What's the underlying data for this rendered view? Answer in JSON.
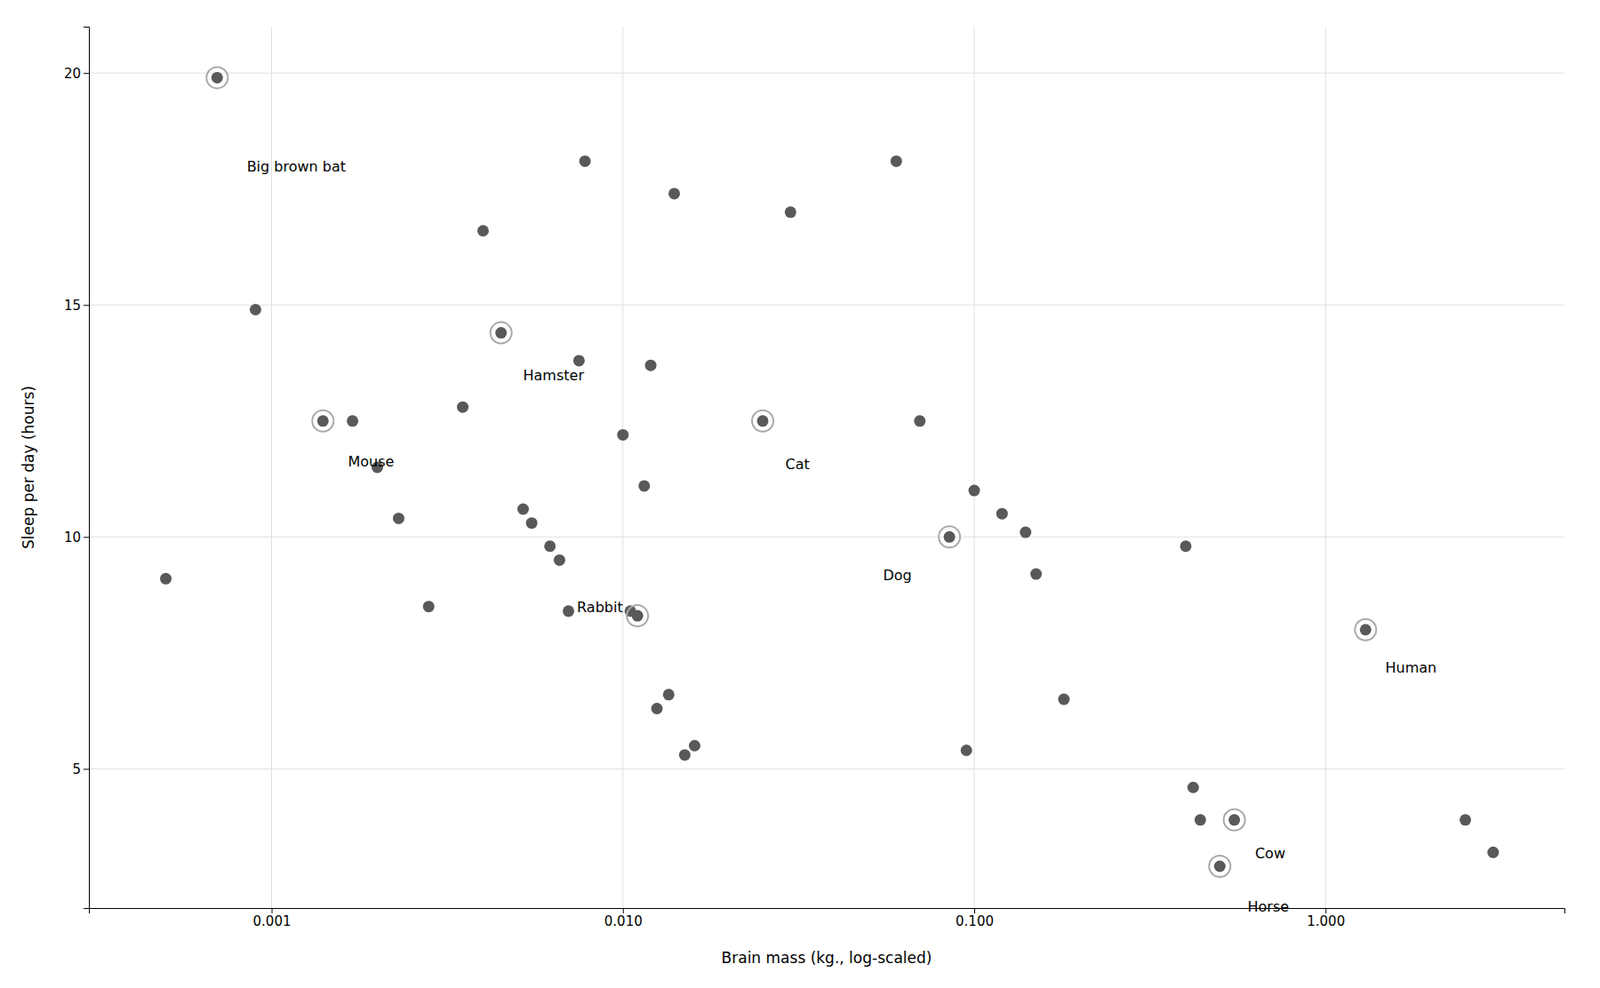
{
  "chart_data": {
    "type": "scatter",
    "xlabel": "Brain mass (kg., log-scaled)",
    "ylabel": "Sleep per day (hours)",
    "log": "x",
    "grid": true,
    "color": "#595959",
    "xlim": [
      0.0003019951720402016,
      4.786300923226383
    ],
    "ylim": [
      2.0,
      21.0
    ],
    "xticks": [
      0.001,
      {
        "value": 0.01,
        "label": "0.010"
      },
      {
        "value": 0.1,
        "label": "0.100"
      },
      {
        "value": 1.0,
        "label": "1.000"
      }
    ],
    "yticks": [
      5,
      10,
      15,
      20
    ],
    "x": [
      0.0005,
      0.0007,
      0.0009,
      0.0014,
      0.0017,
      0.002,
      0.0023,
      0.0028,
      0.0035,
      0.004,
      0.0045,
      0.0052,
      0.0055,
      0.0062,
      0.0066,
      0.007,
      0.0075,
      0.0078,
      0.01,
      0.0105,
      0.011,
      0.0115,
      0.012,
      0.0125,
      0.0135,
      0.014,
      0.015,
      0.016,
      0.025,
      0.03,
      0.06,
      0.07,
      0.085,
      0.095,
      0.1,
      0.12,
      0.14,
      0.15,
      0.18,
      0.4,
      0.42,
      0.44,
      0.5,
      0.55,
      1.3,
      2.5,
      3.0
    ],
    "values": [
      9.1,
      19.9,
      14.9,
      12.5,
      12.5,
      11.5,
      10.4,
      8.5,
      12.8,
      16.6,
      14.4,
      10.6,
      10.3,
      9.8,
      9.5,
      8.4,
      13.8,
      18.1,
      12.2,
      8.4,
      8.3,
      11.1,
      13.7,
      6.3,
      6.6,
      17.4,
      5.3,
      5.5,
      12.5,
      17.0,
      18.1,
      12.5,
      10.0,
      5.4,
      11.0,
      10.5,
      10.1,
      9.2,
      6.5,
      9.8,
      4.6,
      3.9,
      2.9,
      3.9,
      8.0,
      3.9,
      3.2
    ],
    "highlighted": [
      {
        "x": 0.0007,
        "y": 19.9
      },
      {
        "x": 0.0014,
        "y": 12.5
      },
      {
        "x": 0.0045,
        "y": 14.4
      },
      {
        "x": 0.011,
        "y": 8.3
      },
      {
        "x": 0.025,
        "y": 12.5
      },
      {
        "x": 0.085,
        "y": 10.0
      },
      {
        "x": 0.55,
        "y": 3.9
      },
      {
        "x": 0.5,
        "y": 2.9
      },
      {
        "x": 1.3,
        "y": 8.0
      }
    ],
    "annotations": [
      {
        "text": "Big brown bat",
        "x": 0.00085,
        "y": 18.1
      },
      {
        "text": "Mouse",
        "x": 0.00165,
        "y": 11.75
      },
      {
        "text": "Hamster",
        "x": 0.0052,
        "y": 13.6
      },
      {
        "text": "Rabbit",
        "x": 0.0074,
        "y": 8.6
      },
      {
        "text": "Cat",
        "x": 0.029,
        "y": 11.7
      },
      {
        "text": "Dog",
        "x": 0.055,
        "y": 9.3
      },
      {
        "text": "Cow",
        "x": 0.63,
        "y": 3.3
      },
      {
        "text": "Horse",
        "x": 0.6,
        "y": 2.15
      },
      {
        "text": "Human",
        "x": 1.48,
        "y": 7.3
      }
    ]
  }
}
